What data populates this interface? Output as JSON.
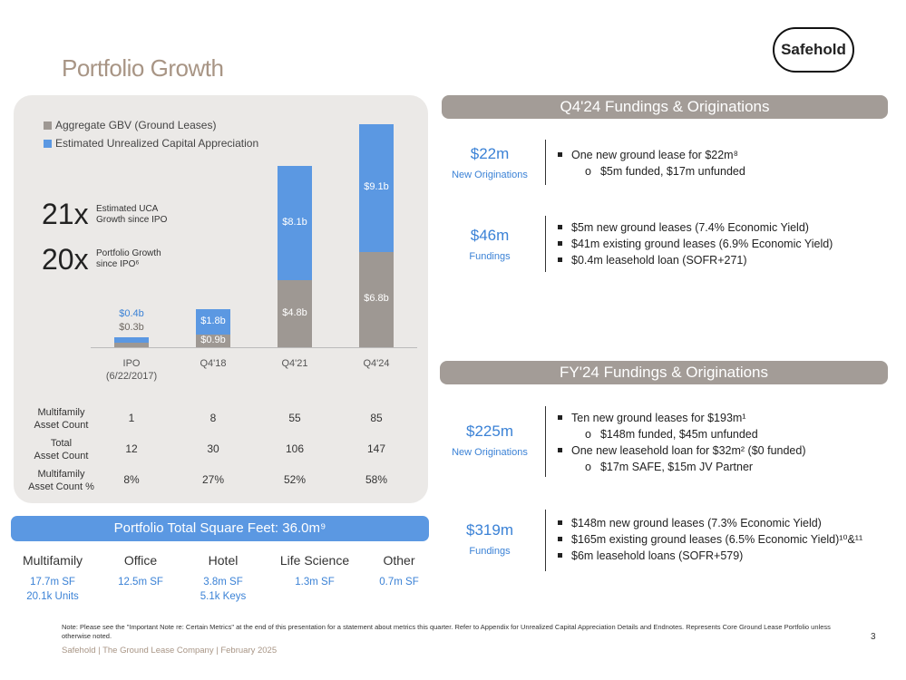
{
  "title": "Portfolio Growth",
  "logo": "Safehold",
  "chart_data": {
    "type": "bar",
    "stacked": true,
    "categories": [
      "IPO (6/22/2017)",
      "Q4'18",
      "Q4'21",
      "Q4'24"
    ],
    "series": [
      {
        "name": "Aggregate GBV (Ground Leases)",
        "color": "#9e9893",
        "values": [
          0.3,
          0.9,
          4.8,
          6.8
        ],
        "labels": [
          "$0.3b",
          "$0.9b",
          "$4.8b",
          "$6.8b"
        ]
      },
      {
        "name": "Estimated Unrealized Capital Appreciation",
        "color": "#5b98e2",
        "values": [
          0.4,
          1.8,
          8.1,
          9.1
        ],
        "labels": [
          "$0.4b",
          "$1.8b",
          "$8.1b",
          "$9.1b"
        ]
      }
    ],
    "ylim": [
      0,
      16
    ]
  },
  "x_labels": [
    "IPO",
    "(6/22/2017)",
    "Q4'18",
    "Q4'21",
    "Q4'24"
  ],
  "callouts": [
    {
      "big": "21x",
      "l1": "Estimated UCA",
      "l2": "Growth since IPO"
    },
    {
      "big": "20x",
      "l1": "Portfolio Growth",
      "l2": "since IPO⁶"
    }
  ],
  "table": [
    {
      "l1": "Multifamily",
      "l2": "Asset Count",
      "v": [
        "1",
        "8",
        "55",
        "85"
      ]
    },
    {
      "l1": "Total",
      "l2": "Asset Count",
      "v": [
        "12",
        "30",
        "106",
        "147"
      ]
    },
    {
      "l1": "Multifamily",
      "l2": "Asset Count %",
      "v": [
        "8%",
        "27%",
        "52%",
        "58%"
      ]
    }
  ],
  "sqft": {
    "title": "Portfolio Total Square Feet: 36.0m⁹",
    "cats": [
      {
        "name": "Multifamily",
        "v1": "17.7m SF",
        "v2": "20.1k Units"
      },
      {
        "name": "Office",
        "v1": "12.5m SF",
        "v2": ""
      },
      {
        "name": "Hotel",
        "v1": "3.8m SF",
        "v2": "5.1k Keys"
      },
      {
        "name": "Life Science",
        "v1": "1.3m SF",
        "v2": ""
      },
      {
        "name": "Other",
        "v1": "0.7m SF",
        "v2": ""
      }
    ]
  },
  "q4": {
    "header": "Q4'24 Fundings & Originations",
    "orig": {
      "value": "$22m",
      "label": "New Originations",
      "b1": "One new ground lease for $22m⁸",
      "s1": "$5m funded, $17m unfunded"
    },
    "fund": {
      "value": "$46m",
      "label": "Fundings",
      "b": [
        "$5m new ground leases (7.4% Economic Yield)",
        "$41m existing ground leases (6.9% Economic Yield)",
        "$0.4m leasehold loan (SOFR+271)"
      ]
    }
  },
  "fy": {
    "header": "FY'24 Fundings & Originations",
    "orig": {
      "value": "$225m",
      "label": "New Originations",
      "b1": "Ten new ground leases for $193m¹",
      "s1": "$148m funded, $45m unfunded",
      "b2": "One new leasehold loan for $32m² ($0 funded)",
      "s2": "$17m SAFE, $15m JV Partner"
    },
    "fund": {
      "value": "$319m",
      "label": "Fundings",
      "b": [
        "$148m new ground leases (7.3% Economic Yield)",
        "$165m existing ground leases (6.5% Economic Yield)¹⁰&¹¹",
        "$6m leasehold loans (SOFR+579)"
      ]
    }
  },
  "note": "Note: Please see the \"Important Note re: Certain Metrics\" at the end of this presentation for a statement about metrics this quarter. Refer to Appendix for Unrealized Capital Appreciation Details and Endnotes. Represents Core Ground Lease Portfolio unless otherwise noted.",
  "footer": "Safehold | The Ground Lease Company | February 2025",
  "page": "3"
}
